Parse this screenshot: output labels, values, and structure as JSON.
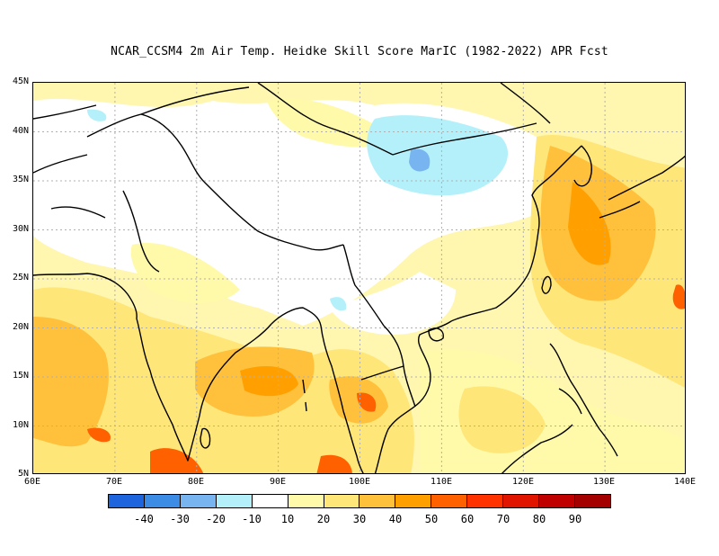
{
  "title": "NCAR_CCSM4  2m Air Temp. Heidke Skill Score MarIC (1982-2022) APR Fcst",
  "lat_labels": [
    "45N",
    "40N",
    "35N",
    "30N",
    "25N",
    "20N",
    "15N",
    "10N",
    "5N"
  ],
  "lon_labels": [
    "60E",
    "70E",
    "80E",
    "90E",
    "100E",
    "110E",
    "120E",
    "130E",
    "140E"
  ],
  "colorbar": {
    "colors": [
      "#1e64dc",
      "#3c8ce6",
      "#78b4f0",
      "#b4f0fa",
      "#ffffff",
      "#fffaaa",
      "#ffe678",
      "#ffc03c",
      "#ffa000",
      "#ff6000",
      "#ff3200",
      "#e11400",
      "#c00000",
      "#a50000"
    ],
    "labels": [
      "-40",
      "-30",
      "-20",
      "-10",
      "10",
      "20",
      "30",
      "40",
      "50",
      "60",
      "70",
      "80",
      "90"
    ]
  },
  "colors": {
    "frame": "#000000",
    "grid": "#b0b0b0",
    "coast": "#000000"
  }
}
